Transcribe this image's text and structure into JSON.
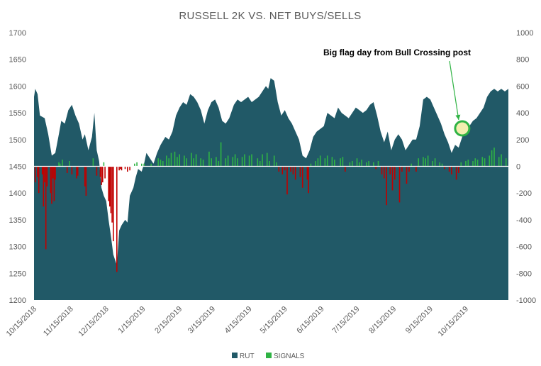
{
  "chart_data": {
    "type": "area",
    "title": "RUSSELL 2K VS. NET BUYS/SELLS",
    "annotation": "Big flag day from Bull Crossing post",
    "left_axis": {
      "ylim": [
        1200,
        1700
      ],
      "ticks": [
        1200,
        1250,
        1300,
        1350,
        1400,
        1450,
        1500,
        1550,
        1600,
        1650,
        1700
      ]
    },
    "right_axis": {
      "ylim": [
        -1000,
        1000
      ],
      "ticks": [
        -1000,
        -800,
        -600,
        -400,
        -200,
        0,
        200,
        400,
        600,
        800,
        1000
      ]
    },
    "x_labels": [
      "10/15/2018",
      "11/15/2018",
      "12/15/2018",
      "1/15/2019",
      "2/15/2019",
      "3/15/2019",
      "4/15/2019",
      "5/15/2019",
      "6/15/2019",
      "7/15/2019",
      "8/15/2019",
      "9/15/2019",
      "10/15/2019"
    ],
    "legend": [
      "RUT",
      "SIGNALS"
    ],
    "colors": {
      "rut": "#215967",
      "buy": "#2fb344",
      "sell": "#c00000",
      "marker": "#2fb344",
      "marker_fill": "#f3eeb0"
    },
    "rut_points": [
      [
        "10/15/2018",
        1580
      ],
      [
        "10/16/2018",
        1595
      ],
      [
        "10/18/2018",
        1585
      ],
      [
        "10/20/2018",
        1545
      ],
      [
        "10/24/2018",
        1540
      ],
      [
        "10/27/2018",
        1510
      ],
      [
        "10/30/2018",
        1470
      ],
      [
        "11/2/2018",
        1475
      ],
      [
        "11/5/2018",
        1510
      ],
      [
        "11/7/2018",
        1535
      ],
      [
        "11/10/2018",
        1530
      ],
      [
        "11/13/2018",
        1555
      ],
      [
        "11/16/2018",
        1565
      ],
      [
        "11/19/2018",
        1545
      ],
      [
        "11/22/2018",
        1530
      ],
      [
        "11/25/2018",
        1500
      ],
      [
        "11/27/2018",
        1510
      ],
      [
        "11/30/2018",
        1480
      ],
      [
        "12/3/2018",
        1505
      ],
      [
        "12/5/2018",
        1550
      ],
      [
        "12/7/2018",
        1480
      ],
      [
        "12/9/2018",
        1460
      ],
      [
        "12/11/2018",
        1410
      ],
      [
        "12/13/2018",
        1395
      ],
      [
        "12/15/2018",
        1385
      ],
      [
        "12/17/2018",
        1350
      ],
      [
        "12/19/2018",
        1320
      ],
      [
        "12/21/2018",
        1285
      ],
      [
        "12/24/2018",
        1265
      ],
      [
        "12/26/2018",
        1330
      ],
      [
        "12/28/2018",
        1340
      ],
      [
        "12/31/2018",
        1350
      ],
      [
        "1/2/2019",
        1345
      ],
      [
        "1/4/2019",
        1395
      ],
      [
        "1/7/2019",
        1410
      ],
      [
        "1/9/2019",
        1430
      ],
      [
        "1/11/2019",
        1445
      ],
      [
        "1/14/2019",
        1440
      ],
      [
        "1/16/2019",
        1455
      ],
      [
        "1/18/2019",
        1475
      ],
      [
        "1/21/2019",
        1465
      ],
      [
        "1/24/2019",
        1455
      ],
      [
        "1/27/2019",
        1475
      ],
      [
        "1/30/2019",
        1490
      ],
      [
        "2/3/2019",
        1505
      ],
      [
        "2/6/2019",
        1500
      ],
      [
        "2/9/2019",
        1515
      ],
      [
        "2/12/2019",
        1545
      ],
      [
        "2/15/2019",
        1560
      ],
      [
        "2/18/2019",
        1570
      ],
      [
        "2/21/2019",
        1565
      ],
      [
        "2/24/2019",
        1585
      ],
      [
        "2/27/2019",
        1580
      ],
      [
        "3/2/2019",
        1570
      ],
      [
        "3/5/2019",
        1555
      ],
      [
        "3/8/2019",
        1530
      ],
      [
        "3/11/2019",
        1555
      ],
      [
        "3/14/2019",
        1570
      ],
      [
        "3/17/2019",
        1575
      ],
      [
        "3/20/2019",
        1560
      ],
      [
        "3/23/2019",
        1535
      ],
      [
        "3/26/2019",
        1530
      ],
      [
        "3/29/2019",
        1540
      ],
      [
        "4/2/2019",
        1565
      ],
      [
        "4/5/2019",
        1575
      ],
      [
        "4/8/2019",
        1570
      ],
      [
        "4/11/2019",
        1575
      ],
      [
        "4/14/2019",
        1580
      ],
      [
        "4/17/2019",
        1570
      ],
      [
        "4/20/2019",
        1575
      ],
      [
        "4/23/2019",
        1580
      ],
      [
        "4/26/2019",
        1590
      ],
      [
        "4/29/2019",
        1600
      ],
      [
        "5/1/2019",
        1595
      ],
      [
        "5/3/2019",
        1615
      ],
      [
        "5/6/2019",
        1610
      ],
      [
        "5/9/2019",
        1570
      ],
      [
        "5/12/2019",
        1545
      ],
      [
        "5/15/2019",
        1555
      ],
      [
        "5/18/2019",
        1540
      ],
      [
        "5/21/2019",
        1530
      ],
      [
        "5/24/2019",
        1515
      ],
      [
        "5/27/2019",
        1500
      ],
      [
        "5/30/2019",
        1470
      ],
      [
        "6/2/2019",
        1465
      ],
      [
        "6/5/2019",
        1480
      ],
      [
        "6/8/2019",
        1505
      ],
      [
        "6/11/2019",
        1515
      ],
      [
        "6/14/2019",
        1520
      ],
      [
        "6/17/2019",
        1525
      ],
      [
        "6/20/2019",
        1550
      ],
      [
        "6/23/2019",
        1545
      ],
      [
        "6/26/2019",
        1540
      ],
      [
        "6/29/2019",
        1560
      ],
      [
        "7/2/2019",
        1550
      ],
      [
        "7/5/2019",
        1545
      ],
      [
        "7/8/2019",
        1540
      ],
      [
        "7/11/2019",
        1550
      ],
      [
        "7/14/2019",
        1560
      ],
      [
        "7/17/2019",
        1555
      ],
      [
        "7/20/2019",
        1550
      ],
      [
        "7/23/2019",
        1555
      ],
      [
        "7/26/2019",
        1565
      ],
      [
        "7/29/2019",
        1570
      ],
      [
        "8/1/2019",
        1545
      ],
      [
        "8/4/2019",
        1515
      ],
      [
        "8/7/2019",
        1495
      ],
      [
        "8/10/2019",
        1515
      ],
      [
        "8/13/2019",
        1480
      ],
      [
        "8/16/2019",
        1500
      ],
      [
        "8/19/2019",
        1510
      ],
      [
        "8/22/2019",
        1500
      ],
      [
        "8/25/2019",
        1480
      ],
      [
        "8/28/2019",
        1490
      ],
      [
        "8/31/2019",
        1500
      ],
      [
        "9/3/2019",
        1500
      ],
      [
        "9/6/2019",
        1525
      ],
      [
        "9/9/2019",
        1575
      ],
      [
        "9/12/2019",
        1580
      ],
      [
        "9/15/2019",
        1575
      ],
      [
        "9/18/2019",
        1560
      ],
      [
        "9/21/2019",
        1545
      ],
      [
        "9/24/2019",
        1530
      ],
      [
        "9/27/2019",
        1510
      ],
      [
        "9/30/2019",
        1495
      ],
      [
        "10/3/2019",
        1475
      ],
      [
        "10/6/2019",
        1490
      ],
      [
        "10/9/2019",
        1485
      ],
      [
        "10/12/2019",
        1505
      ],
      [
        "10/15/2019",
        1520
      ],
      [
        "10/18/2019",
        1525
      ],
      [
        "10/21/2019",
        1535
      ],
      [
        "10/24/2019",
        1540
      ],
      [
        "10/27/2019",
        1550
      ],
      [
        "10/30/2019",
        1560
      ],
      [
        "11/2/2019",
        1580
      ],
      [
        "11/5/2019",
        1590
      ],
      [
        "11/8/2019",
        1595
      ],
      [
        "11/11/2019",
        1590
      ],
      [
        "11/14/2019",
        1595
      ],
      [
        "11/17/2019",
        1590
      ],
      [
        "11/20/2019",
        1595
      ]
    ],
    "signals": [
      [
        "10/16/2018",
        -120
      ],
      [
        "10/18/2018",
        -80
      ],
      [
        "10/19/2018",
        -200
      ],
      [
        "10/22/2018",
        -60
      ],
      [
        "10/23/2018",
        -300
      ],
      [
        "10/24/2018",
        -120
      ],
      [
        "10/25/2018",
        -620
      ],
      [
        "10/26/2018",
        -150
      ],
      [
        "10/29/2018",
        -200
      ],
      [
        "10/30/2018",
        -280
      ],
      [
        "10/31/2018",
        -90
      ],
      [
        "11/1/2018",
        -260
      ],
      [
        "11/2/2018",
        -100
      ],
      [
        "11/5/2018",
        30
      ],
      [
        "11/6/2018",
        20
      ],
      [
        "11/8/2018",
        50
      ],
      [
        "11/12/2018",
        -50
      ],
      [
        "11/14/2018",
        40
      ],
      [
        "11/16/2018",
        -60
      ],
      [
        "11/20/2018",
        -90
      ],
      [
        "11/21/2018",
        -70
      ],
      [
        "11/27/2018",
        -150
      ],
      [
        "11/28/2018",
        -220
      ],
      [
        "12/4/2018",
        60
      ],
      [
        "12/7/2018",
        -70
      ],
      [
        "12/10/2018",
        -80
      ],
      [
        "12/11/2018",
        -140
      ],
      [
        "12/12/2018",
        -120
      ],
      [
        "12/13/2018",
        30
      ],
      [
        "12/14/2018",
        -90
      ],
      [
        "12/17/2018",
        -260
      ],
      [
        "12/18/2018",
        -300
      ],
      [
        "12/19/2018",
        -350
      ],
      [
        "12/20/2018",
        -420
      ],
      [
        "12/21/2018",
        -560
      ],
      [
        "12/24/2018",
        -790
      ],
      [
        "12/26/2018",
        -30
      ],
      [
        "12/27/2018",
        -20
      ],
      [
        "12/28/2018",
        -30
      ],
      [
        "12/31/2018",
        -20
      ],
      [
        "1/2/2019",
        -40
      ],
      [
        "1/4/2019",
        -30
      ],
      [
        "1/8/2019",
        20
      ],
      [
        "1/10/2019",
        30
      ],
      [
        "1/14/2019",
        20
      ],
      [
        "1/16/2019",
        20
      ],
      [
        "1/22/2019",
        20
      ],
      [
        "1/28/2019",
        60
      ],
      [
        "1/30/2019",
        50
      ],
      [
        "2/1/2019",
        40
      ],
      [
        "2/4/2019",
        80
      ],
      [
        "2/6/2019",
        60
      ],
      [
        "2/8/2019",
        100
      ],
      [
        "2/11/2019",
        110
      ],
      [
        "2/13/2019",
        70
      ],
      [
        "2/15/2019",
        90
      ],
      [
        "2/19/2019",
        80
      ],
      [
        "2/21/2019",
        60
      ],
      [
        "2/25/2019",
        100
      ],
      [
        "2/27/2019",
        60
      ],
      [
        "3/1/2019",
        90
      ],
      [
        "3/5/2019",
        60
      ],
      [
        "3/7/2019",
        50
      ],
      [
        "3/12/2019",
        110
      ],
      [
        "3/14/2019",
        60
      ],
      [
        "3/18/2019",
        70
      ],
      [
        "3/20/2019",
        40
      ],
      [
        "3/22/2019",
        180
      ],
      [
        "3/26/2019",
        60
      ],
      [
        "3/28/2019",
        80
      ],
      [
        "4/1/2019",
        70
      ],
      [
        "4/3/2019",
        90
      ],
      [
        "4/5/2019",
        60
      ],
      [
        "4/9/2019",
        70
      ],
      [
        "4/11/2019",
        90
      ],
      [
        "4/15/2019",
        80
      ],
      [
        "4/17/2019",
        90
      ],
      [
        "4/22/2019",
        60
      ],
      [
        "4/24/2019",
        40
      ],
      [
        "4/26/2019",
        90
      ],
      [
        "4/30/2019",
        100
      ],
      [
        "5/2/2019",
        40
      ],
      [
        "5/6/2019",
        80
      ],
      [
        "5/8/2019",
        30
      ],
      [
        "5/10/2019",
        -40
      ],
      [
        "5/13/2019",
        -60
      ],
      [
        "5/15/2019",
        -30
      ],
      [
        "5/17/2019",
        -210
      ],
      [
        "5/20/2019",
        -40
      ],
      [
        "5/22/2019",
        -60
      ],
      [
        "5/24/2019",
        -100
      ],
      [
        "5/28/2019",
        -80
      ],
      [
        "5/30/2019",
        -160
      ],
      [
        "6/3/2019",
        -100
      ],
      [
        "6/4/2019",
        -200
      ],
      [
        "6/6/2019",
        20
      ],
      [
        "6/10/2019",
        40
      ],
      [
        "6/12/2019",
        60
      ],
      [
        "6/14/2019",
        80
      ],
      [
        "6/18/2019",
        60
      ],
      [
        "6/20/2019",
        80
      ],
      [
        "6/24/2019",
        70
      ],
      [
        "6/26/2019",
        50
      ],
      [
        "7/1/2019",
        60
      ],
      [
        "7/3/2019",
        70
      ],
      [
        "7/5/2019",
        -40
      ],
      [
        "7/9/2019",
        30
      ],
      [
        "7/11/2019",
        40
      ],
      [
        "7/15/2019",
        60
      ],
      [
        "7/17/2019",
        30
      ],
      [
        "7/19/2019",
        50
      ],
      [
        "7/23/2019",
        30
      ],
      [
        "7/25/2019",
        40
      ],
      [
        "7/29/2019",
        30
      ],
      [
        "7/31/2019",
        -20
      ],
      [
        "8/2/2019",
        40
      ],
      [
        "8/5/2019",
        -60
      ],
      [
        "8/7/2019",
        -90
      ],
      [
        "8/9/2019",
        -290
      ],
      [
        "8/12/2019",
        -60
      ],
      [
        "8/14/2019",
        -180
      ],
      [
        "8/16/2019",
        -100
      ],
      [
        "8/20/2019",
        -270
      ],
      [
        "8/22/2019",
        -40
      ],
      [
        "8/26/2019",
        -130
      ],
      [
        "8/28/2019",
        -40
      ],
      [
        "8/30/2019",
        20
      ],
      [
        "9/3/2019",
        -40
      ],
      [
        "9/5/2019",
        60
      ],
      [
        "9/9/2019",
        70
      ],
      [
        "9/11/2019",
        60
      ],
      [
        "9/13/2019",
        80
      ],
      [
        "9/17/2019",
        40
      ],
      [
        "9/19/2019",
        60
      ],
      [
        "9/23/2019",
        30
      ],
      [
        "9/25/2019",
        20
      ],
      [
        "9/27/2019",
        -20
      ],
      [
        "10/1/2019",
        -40
      ],
      [
        "10/3/2019",
        -60
      ],
      [
        "10/7/2019",
        -100
      ],
      [
        "10/9/2019",
        -50
      ],
      [
        "10/11/2019",
        30
      ],
      [
        "10/15/2019",
        40
      ],
      [
        "10/17/2019",
        50
      ],
      [
        "10/21/2019",
        40
      ],
      [
        "10/23/2019",
        60
      ],
      [
        "10/25/2019",
        50
      ],
      [
        "10/29/2019",
        70
      ],
      [
        "10/31/2019",
        60
      ],
      [
        "11/4/2019",
        80
      ],
      [
        "11/6/2019",
        120
      ],
      [
        "11/8/2019",
        140
      ],
      [
        "11/12/2019",
        70
      ],
      [
        "11/14/2019",
        90
      ],
      [
        "11/18/2019",
        60
      ]
    ],
    "highlight_date": "10/12/2019",
    "highlight_value": 1505
  }
}
